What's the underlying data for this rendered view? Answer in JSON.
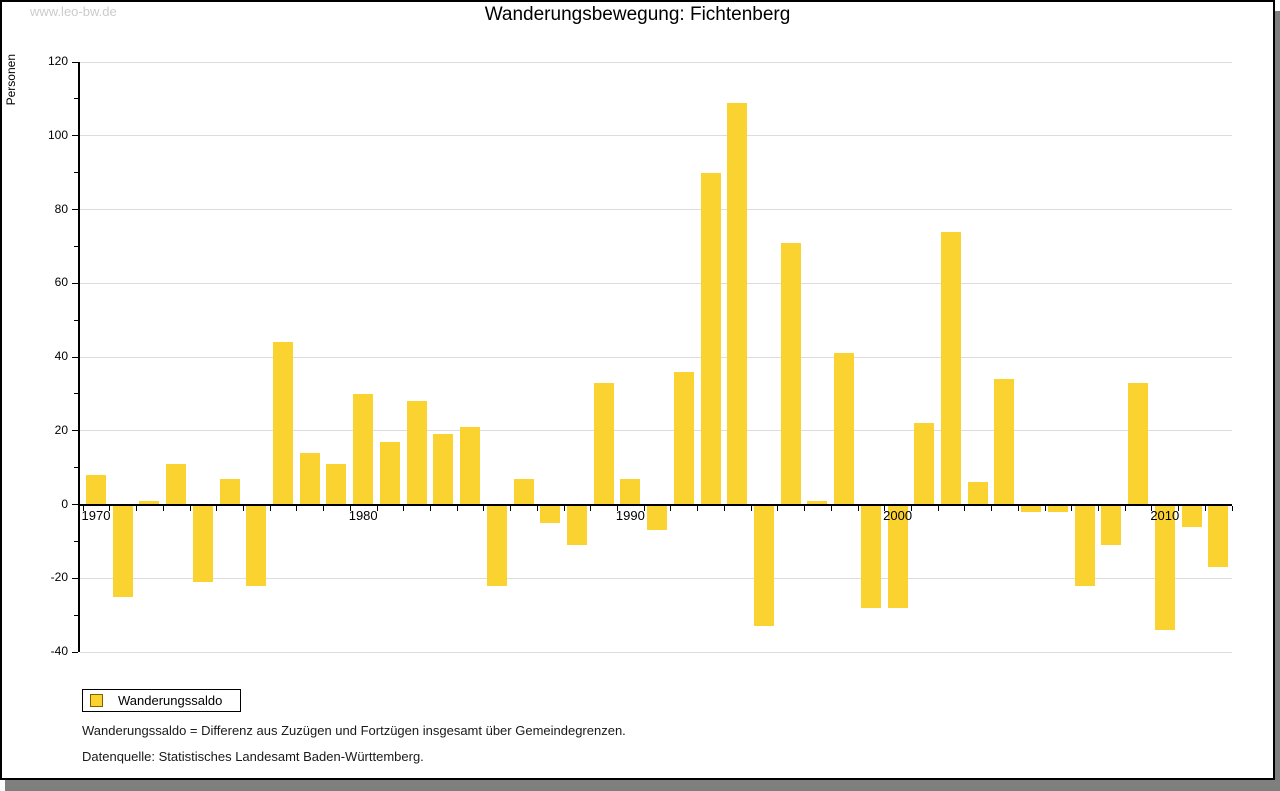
{
  "watermark": "www.leo-bw.de",
  "title": "Wanderungsbewegung: Fichtenberg",
  "y_axis": {
    "label": "Personen",
    "min": -40,
    "max": 120,
    "major_step": 20,
    "minor_step": 10
  },
  "x_axis": {
    "tick_labels": [
      "1970",
      "1980",
      "1990",
      "2000",
      "2010"
    ]
  },
  "legend": {
    "label": "Wanderungssaldo"
  },
  "captions": {
    "definition": "Wanderungssaldo = Differenz aus Zuzügen und Fortzügen insgesamt über Gemeindegrenzen.",
    "source": "Datenquelle: Statistisches Landesamt Baden-Württemberg."
  },
  "colors": {
    "bar": "#FBD330",
    "legend_swatch_border": "#806000",
    "gridline": "#DCDCDC",
    "axis": "#000000",
    "watermark": "#CCCCCC",
    "frame_shadow": "#7F7F7F"
  },
  "chart_data": {
    "type": "bar",
    "title": "Wanderungsbewegung: Fichtenberg",
    "xlabel": "",
    "ylabel": "Personen",
    "ylim": [
      -40,
      120
    ],
    "grid": true,
    "legend_position": "bottom-left",
    "series_name": "Wanderungssaldo",
    "x_tick_labels": [
      "1970",
      "1980",
      "1990",
      "2000",
      "2010"
    ],
    "categories": [
      1970,
      1971,
      1972,
      1973,
      1974,
      1975,
      1976,
      1977,
      1978,
      1979,
      1980,
      1981,
      1982,
      1983,
      1984,
      1985,
      1986,
      1987,
      1988,
      1989,
      1990,
      1991,
      1992,
      1993,
      1994,
      1995,
      1996,
      1997,
      1998,
      1999,
      2000,
      2001,
      2002,
      2003,
      2004,
      2005,
      2006,
      2007,
      2008,
      2009,
      2010,
      2011,
      2012
    ],
    "values": [
      8,
      -25,
      1,
      11,
      -21,
      7,
      -22,
      44,
      14,
      11,
      30,
      17,
      28,
      19,
      21,
      -22,
      7,
      -5,
      -11,
      33,
      7,
      -7,
      36,
      90,
      109,
      -33,
      71,
      1,
      41,
      -28,
      -28,
      22,
      74,
      6,
      34,
      -2,
      -2,
      -22,
      -11,
      33,
      -34,
      -6,
      -17
    ]
  }
}
